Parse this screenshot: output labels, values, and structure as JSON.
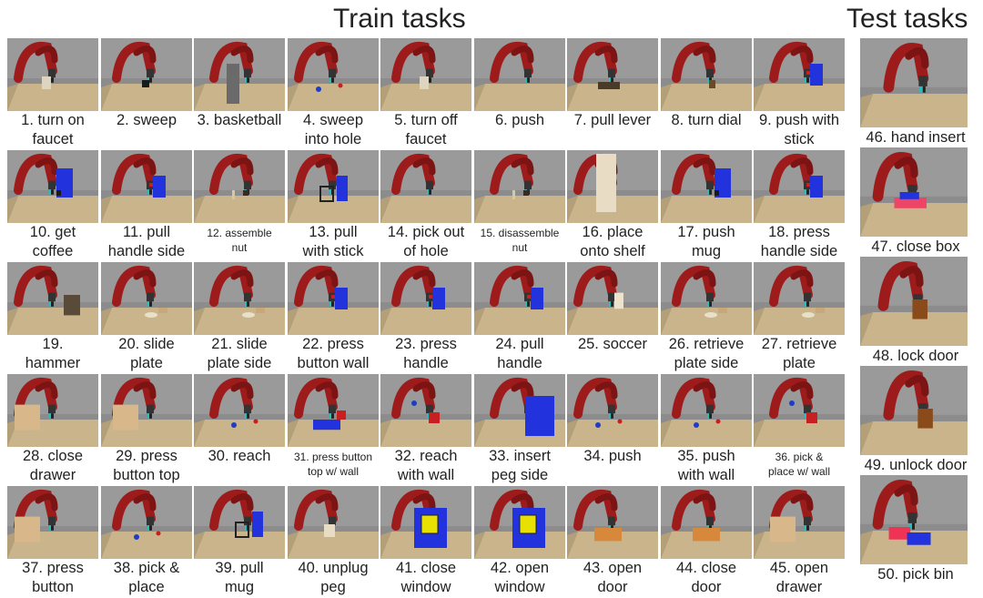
{
  "headers": {
    "train": "Train tasks",
    "test": "Test tasks"
  },
  "train_tasks": [
    {
      "lines": [
        "1. turn on",
        "faucet"
      ],
      "obj": "faucet"
    },
    {
      "lines": [
        "2. sweep",
        ""
      ],
      "obj": "cube-small"
    },
    {
      "lines": [
        "3. basketball",
        ""
      ],
      "obj": "board"
    },
    {
      "lines": [
        "4. sweep",
        "into hole"
      ],
      "obj": "ball"
    },
    {
      "lines": [
        "5. turn off",
        "faucet"
      ],
      "obj": "faucet"
    },
    {
      "lines": [
        "6. push",
        ""
      ],
      "obj": "none"
    },
    {
      "lines": [
        "7. pull lever",
        ""
      ],
      "obj": "lever"
    },
    {
      "lines": [
        "8. turn dial",
        ""
      ],
      "obj": "dial"
    },
    {
      "lines": [
        "9. push with",
        "stick"
      ],
      "obj": "blue-box"
    },
    {
      "lines": [
        "10. get",
        "coffee"
      ],
      "obj": "coffee"
    },
    {
      "lines": [
        "11. pull",
        "handle side"
      ],
      "obj": "blue-box"
    },
    {
      "lines": [
        "12. assemble",
        "nut"
      ],
      "obj": "nut",
      "small": true
    },
    {
      "lines": [
        "13. pull",
        "with stick"
      ],
      "obj": "blue-tall"
    },
    {
      "lines": [
        "14. pick out",
        "of hole"
      ],
      "obj": "none"
    },
    {
      "lines": [
        "15. disassemble",
        "nut"
      ],
      "obj": "nut",
      "small": true
    },
    {
      "lines": [
        "16. place",
        "onto shelf"
      ],
      "obj": "shelf"
    },
    {
      "lines": [
        "17. push",
        "mug"
      ],
      "obj": "coffee"
    },
    {
      "lines": [
        "18. press",
        "handle side"
      ],
      "obj": "blue-box"
    },
    {
      "lines": [
        "19.",
        "hammer"
      ],
      "obj": "hammer"
    },
    {
      "lines": [
        "20. slide",
        "plate"
      ],
      "obj": "plate"
    },
    {
      "lines": [
        "21. slide",
        "plate side"
      ],
      "obj": "plate"
    },
    {
      "lines": [
        "22. press",
        "button wall"
      ],
      "obj": "blue-box"
    },
    {
      "lines": [
        "23. press",
        "handle"
      ],
      "obj": "blue-box"
    },
    {
      "lines": [
        "24. pull",
        "handle"
      ],
      "obj": "blue-box"
    },
    {
      "lines": [
        "25. soccer",
        ""
      ],
      "obj": "goal"
    },
    {
      "lines": [
        "26. retrieve",
        "plate side"
      ],
      "obj": "plate"
    },
    {
      "lines": [
        "27. retrieve",
        "plate"
      ],
      "obj": "plate"
    },
    {
      "lines": [
        "28. close",
        "drawer"
      ],
      "obj": "drawer"
    },
    {
      "lines": [
        "29. press",
        "button top"
      ],
      "obj": "drawer"
    },
    {
      "lines": [
        "30. reach",
        ""
      ],
      "obj": "ball"
    },
    {
      "lines": [
        "31. press button",
        "top w/ wall"
      ],
      "obj": "blue-flat",
      "small": true
    },
    {
      "lines": [
        "32. reach",
        "with wall"
      ],
      "obj": "red-wall"
    },
    {
      "lines": [
        "33. insert",
        "peg side"
      ],
      "obj": "blue-big"
    },
    {
      "lines": [
        "34. push",
        ""
      ],
      "obj": "ball"
    },
    {
      "lines": [
        "35. push",
        "with wall"
      ],
      "obj": "ball"
    },
    {
      "lines": [
        "36. pick &",
        "place w/ wall"
      ],
      "obj": "red-wall",
      "small": true
    },
    {
      "lines": [
        "37. press",
        "button"
      ],
      "obj": "drawer"
    },
    {
      "lines": [
        "38. pick &",
        "place"
      ],
      "obj": "ball"
    },
    {
      "lines": [
        "39. pull",
        "mug"
      ],
      "obj": "blue-tall"
    },
    {
      "lines": [
        "40. unplug",
        "peg"
      ],
      "obj": "plug"
    },
    {
      "lines": [
        "41. close",
        "window"
      ],
      "obj": "window"
    },
    {
      "lines": [
        "42. open",
        "window"
      ],
      "obj": "window"
    },
    {
      "lines": [
        "43. open",
        "door"
      ],
      "obj": "door"
    },
    {
      "lines": [
        "44. close",
        "door"
      ],
      "obj": "door"
    },
    {
      "lines": [
        "45. open",
        "drawer"
      ],
      "obj": "drawer"
    }
  ],
  "test_tasks": [
    {
      "label": "46. hand insert",
      "obj": "none"
    },
    {
      "label": "47. close box",
      "obj": "box"
    },
    {
      "label": "48. lock door",
      "obj": "lock"
    },
    {
      "label": "49. unlock door",
      "obj": "lock"
    },
    {
      "label": "50. pick bin",
      "obj": "bin"
    }
  ],
  "colors": {
    "background_gray": "#8a8a8a",
    "table_wood": "#c9b48c",
    "robot_red": "#9e1b1b",
    "object_blue": "#2233dd"
  }
}
